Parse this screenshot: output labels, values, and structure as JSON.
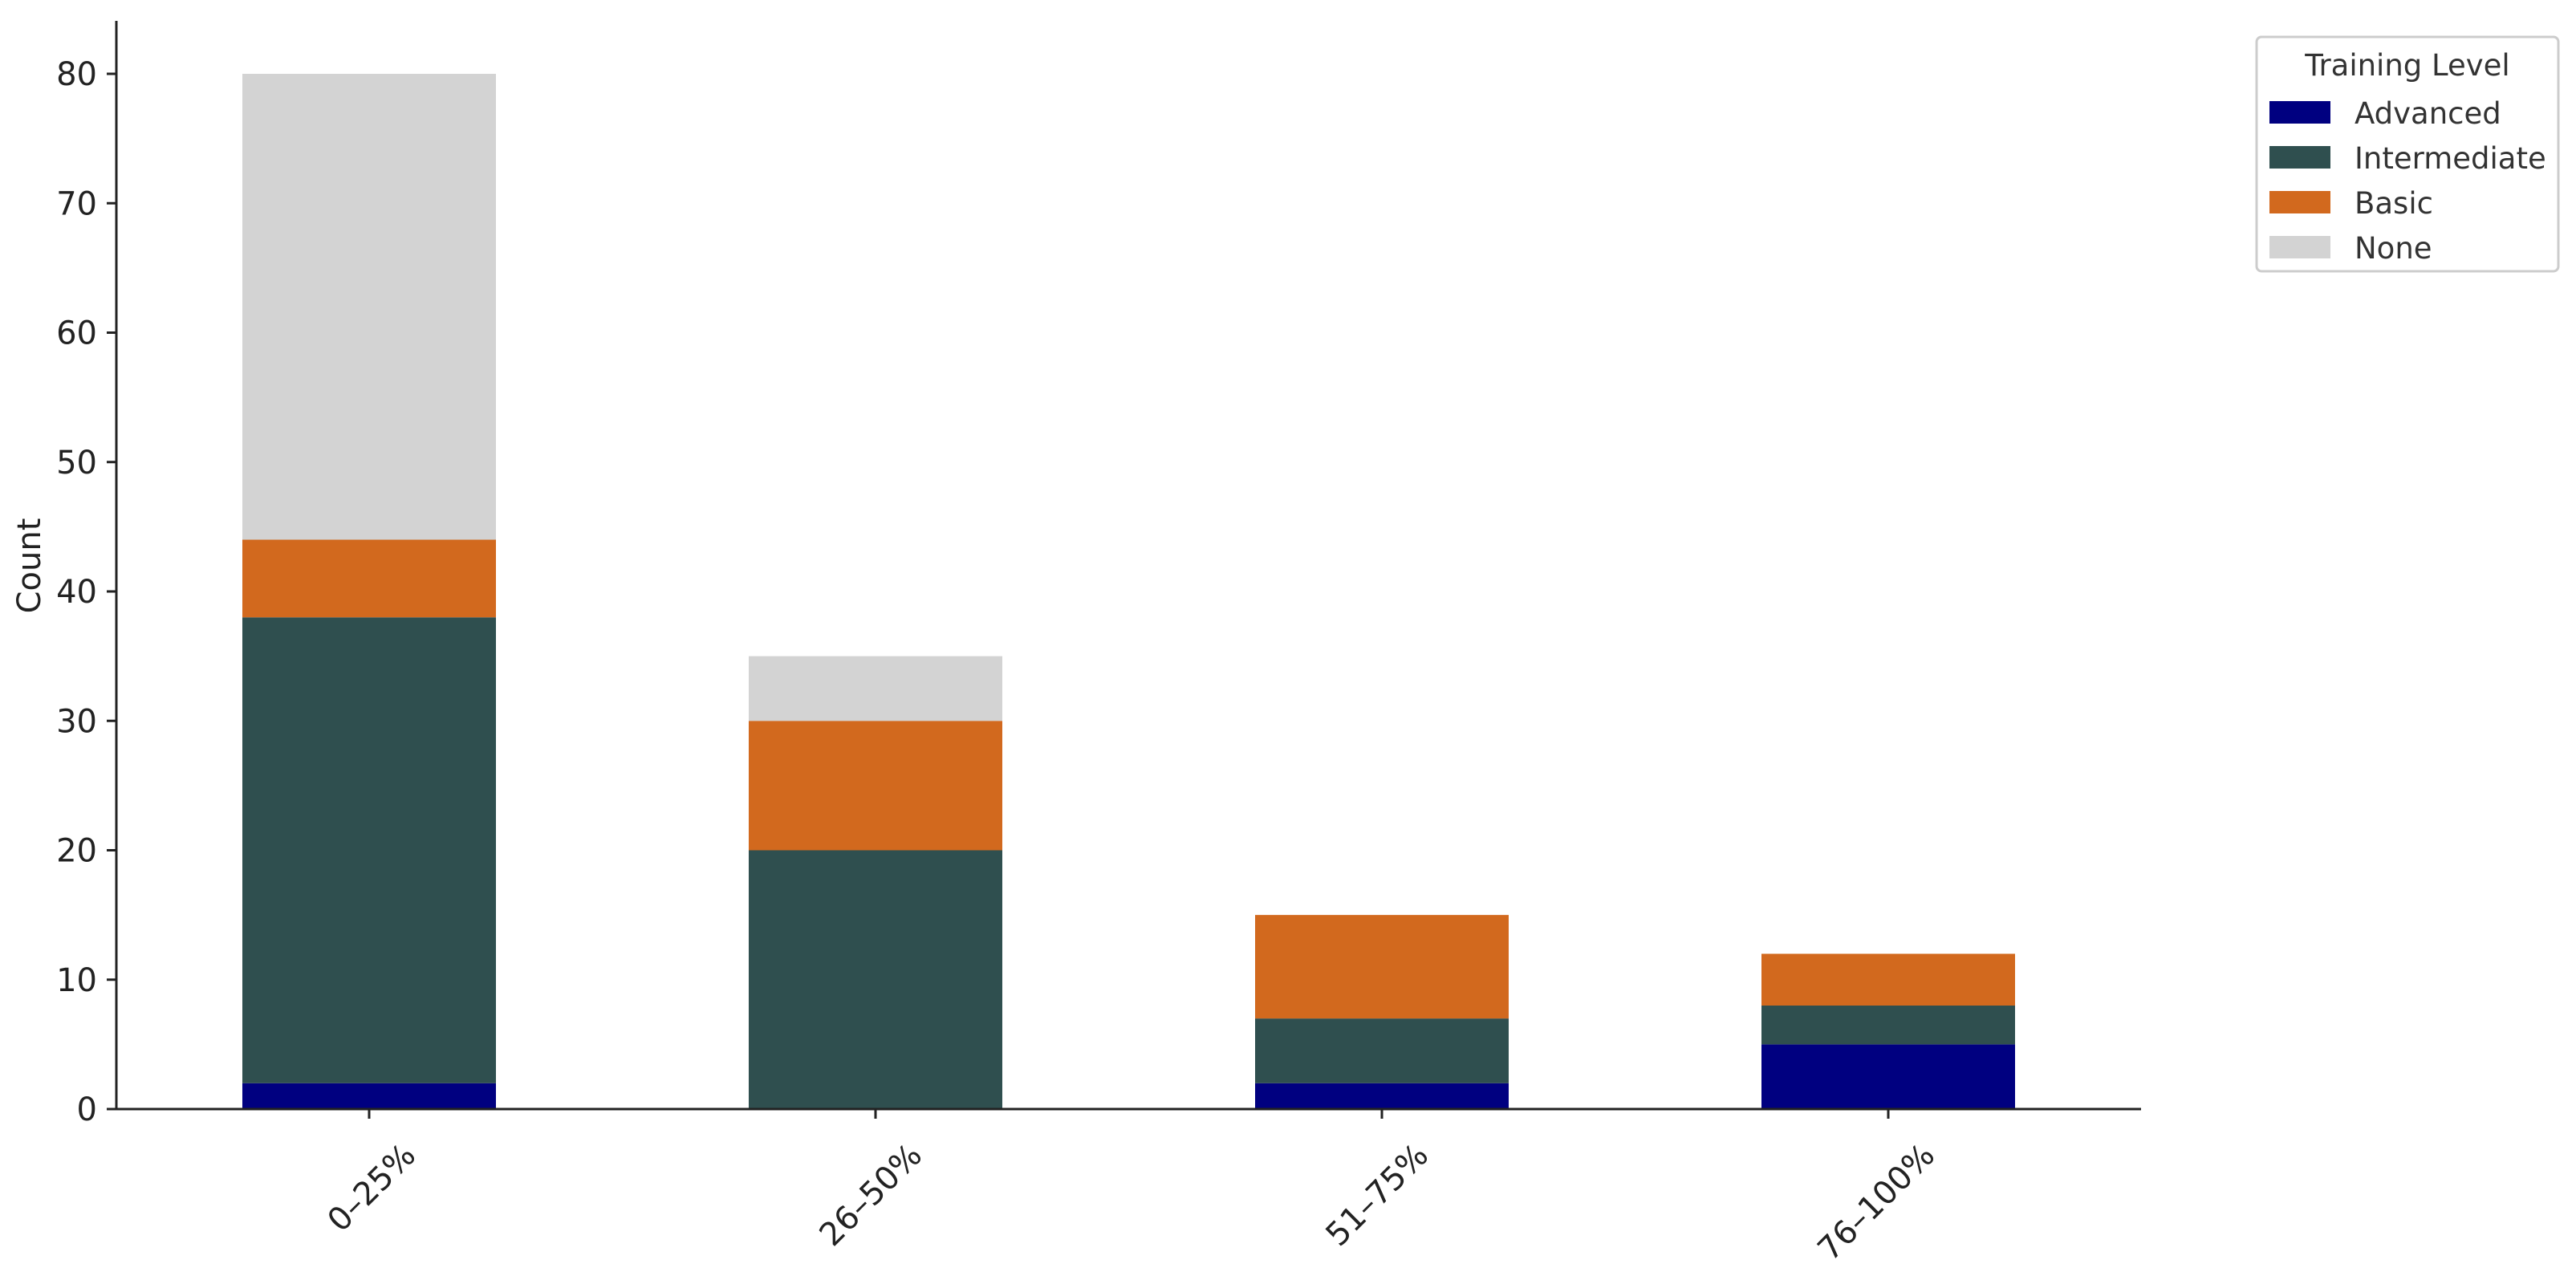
{
  "chart_data": {
    "type": "bar",
    "stacked": true,
    "categories": [
      "0–25%",
      "26–50%",
      "51–75%",
      "76–100%"
    ],
    "series": [
      {
        "name": "Advanced",
        "color": "#000080",
        "values": [
          2,
          0,
          2,
          5
        ]
      },
      {
        "name": "Intermediate",
        "color": "#2f4f4f",
        "values": [
          36,
          20,
          5,
          3
        ]
      },
      {
        "name": "Basic",
        "color": "#d2691e",
        "values": [
          6,
          10,
          8,
          4
        ]
      },
      {
        "name": "None",
        "color": "#d3d3d3",
        "values": [
          36,
          5,
          0,
          0
        ]
      }
    ],
    "ylabel": "Count",
    "xlabel": "",
    "ylim": [
      0,
      84
    ],
    "yticks": [
      0,
      10,
      20,
      30,
      40,
      50,
      60,
      70,
      80
    ],
    "grid": false,
    "legend": {
      "title": "Training Level",
      "position": "top-right"
    }
  }
}
